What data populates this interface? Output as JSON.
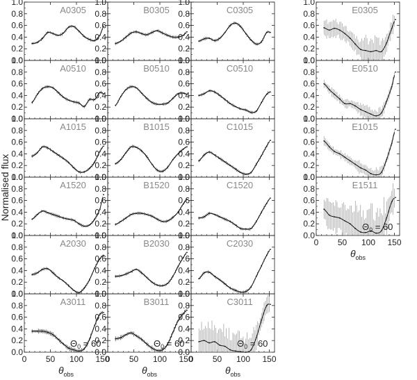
{
  "chart_data": {
    "type": "line",
    "ylabel": "Normalised flux",
    "xlabel": "θobs",
    "xlabel_main": "θ",
    "xlabel_sub": "obs",
    "xlim": [
      0,
      160
    ],
    "ylim": [
      0,
      1.0
    ],
    "xticks": [
      "0",
      "50",
      "100",
      "150"
    ],
    "yticks": [
      "0.0",
      "0.2",
      "0.4",
      "0.6",
      "0.8",
      "1.0"
    ],
    "annotation": {
      "main": "Θ",
      "sub": "0",
      "rest": " = 60"
    },
    "panels": [
      {
        "name": "A0305",
        "col": 0,
        "row": 0,
        "err": 0.02,
        "x": [
          15,
          25,
          35,
          45,
          55,
          65,
          75,
          85,
          95,
          105,
          115,
          125,
          135,
          145,
          152
        ],
        "y": [
          0.29,
          0.31,
          0.38,
          0.48,
          0.46,
          0.43,
          0.47,
          0.57,
          0.58,
          0.5,
          0.41,
          0.36,
          0.34,
          0.43,
          0.58
        ]
      },
      {
        "name": "A0510",
        "col": 0,
        "row": 1,
        "err": 0.02,
        "x": [
          15,
          25,
          35,
          45,
          55,
          65,
          75,
          85,
          95,
          105,
          115,
          125,
          135,
          145,
          152
        ],
        "y": [
          0.28,
          0.42,
          0.52,
          0.55,
          0.53,
          0.45,
          0.37,
          0.32,
          0.29,
          0.27,
          0.21,
          0.33,
          0.33,
          0.45,
          0.43
        ]
      },
      {
        "name": "A1015",
        "col": 0,
        "row": 2,
        "err": 0.02,
        "x": [
          15,
          25,
          35,
          45,
          55,
          65,
          75,
          85,
          95,
          105,
          115,
          125,
          135,
          145,
          152
        ],
        "y": [
          0.36,
          0.42,
          0.52,
          0.5,
          0.44,
          0.38,
          0.32,
          0.25,
          0.16,
          0.09,
          0.09,
          0.15,
          0.26,
          0.44,
          0.53
        ]
      },
      {
        "name": "A1520",
        "col": 0,
        "row": 3,
        "err": 0.02,
        "x": [
          15,
          25,
          35,
          45,
          55,
          65,
          75,
          85,
          95,
          105,
          115,
          125,
          135,
          145,
          152
        ],
        "y": [
          0.28,
          0.36,
          0.42,
          0.39,
          0.36,
          0.33,
          0.3,
          0.28,
          0.26,
          0.2,
          0.16,
          0.18,
          0.28,
          0.45,
          0.7
        ]
      },
      {
        "name": "A2030",
        "col": 0,
        "row": 4,
        "err": 0.02,
        "x": [
          15,
          25,
          35,
          45,
          55,
          65,
          75,
          85,
          95,
          105,
          115,
          125,
          135,
          145,
          152
        ],
        "y": [
          0.33,
          0.36,
          0.42,
          0.43,
          0.36,
          0.28,
          0.22,
          0.14,
          0.06,
          0.02,
          0.1,
          0.24,
          0.44,
          0.6,
          0.66
        ]
      },
      {
        "name": "A3011",
        "col": 0,
        "row": 5,
        "err": 0.03,
        "annotate": true,
        "x": [
          15,
          25,
          35,
          45,
          55,
          65,
          75,
          85,
          95,
          105,
          115,
          125,
          135,
          145,
          152
        ],
        "y": [
          0.36,
          0.36,
          0.36,
          0.34,
          0.3,
          0.22,
          0.14,
          0.07,
          0.04,
          0.02,
          0.06,
          0.22,
          0.46,
          0.65,
          0.68
        ]
      },
      {
        "name": "B0305",
        "col": 1,
        "row": 0,
        "err": 0.02,
        "x": [
          15,
          25,
          35,
          45,
          55,
          65,
          75,
          85,
          95,
          105,
          115,
          125,
          135,
          145,
          152
        ],
        "y": [
          0.29,
          0.33,
          0.4,
          0.47,
          0.49,
          0.46,
          0.44,
          0.48,
          0.51,
          0.47,
          0.43,
          0.4,
          0.4,
          0.43,
          0.49
        ]
      },
      {
        "name": "B0510",
        "col": 1,
        "row": 1,
        "err": 0.02,
        "x": [
          15,
          25,
          35,
          45,
          55,
          65,
          75,
          85,
          95,
          105,
          115,
          125,
          135,
          145,
          152
        ],
        "y": [
          0.23,
          0.38,
          0.5,
          0.55,
          0.53,
          0.44,
          0.35,
          0.28,
          0.25,
          0.25,
          0.27,
          0.35,
          0.43,
          0.44,
          0.42
        ]
      },
      {
        "name": "B1015",
        "col": 1,
        "row": 2,
        "err": 0.02,
        "x": [
          15,
          25,
          35,
          45,
          55,
          65,
          75,
          85,
          95,
          105,
          115,
          125,
          135,
          145,
          152
        ],
        "y": [
          0.23,
          0.3,
          0.42,
          0.52,
          0.51,
          0.45,
          0.35,
          0.22,
          0.12,
          0.1,
          0.17,
          0.3,
          0.4,
          0.48,
          0.52
        ]
      },
      {
        "name": "B1520",
        "col": 1,
        "row": 3,
        "err": 0.02,
        "x": [
          15,
          25,
          35,
          45,
          55,
          65,
          75,
          85,
          95,
          105,
          115,
          125,
          135,
          145,
          152
        ],
        "y": [
          0.19,
          0.24,
          0.3,
          0.36,
          0.38,
          0.38,
          0.36,
          0.33,
          0.28,
          0.24,
          0.25,
          0.31,
          0.4,
          0.54,
          0.62
        ]
      },
      {
        "name": "B2030",
        "col": 1,
        "row": 4,
        "err": 0.02,
        "x": [
          15,
          25,
          35,
          45,
          55,
          65,
          75,
          85,
          95,
          105,
          115,
          125,
          135,
          145,
          152
        ],
        "y": [
          0.3,
          0.31,
          0.34,
          0.38,
          0.42,
          0.36,
          0.28,
          0.2,
          0.15,
          0.14,
          0.18,
          0.3,
          0.47,
          0.62,
          0.71
        ]
      },
      {
        "name": "B3011",
        "col": 1,
        "row": 5,
        "err": 0.03,
        "annotate": true,
        "x": [
          15,
          25,
          35,
          45,
          55,
          65,
          75,
          85,
          95,
          105,
          115,
          125,
          135,
          145,
          152
        ],
        "y": [
          0.23,
          0.25,
          0.3,
          0.33,
          0.28,
          0.22,
          0.14,
          0.07,
          0.03,
          0.04,
          0.14,
          0.34,
          0.54,
          0.66,
          0.72
        ]
      },
      {
        "name": "C0305",
        "col": 2,
        "row": 0,
        "err": 0.02,
        "x": [
          15,
          25,
          35,
          45,
          55,
          65,
          75,
          85,
          95,
          105,
          115,
          125,
          135,
          145,
          152
        ],
        "y": [
          0.33,
          0.37,
          0.38,
          0.34,
          0.38,
          0.48,
          0.6,
          0.64,
          0.58,
          0.46,
          0.35,
          0.28,
          0.32,
          0.48,
          0.48
        ]
      },
      {
        "name": "C0510",
        "col": 2,
        "row": 1,
        "err": 0.02,
        "x": [
          15,
          25,
          35,
          45,
          55,
          65,
          75,
          85,
          95,
          105,
          115,
          125,
          135,
          145,
          152
        ],
        "y": [
          0.4,
          0.43,
          0.48,
          0.46,
          0.4,
          0.33,
          0.26,
          0.21,
          0.17,
          0.15,
          0.11,
          0.13,
          0.28,
          0.42,
          0.46
        ]
      },
      {
        "name": "C1015",
        "col": 2,
        "row": 2,
        "err": 0.02,
        "x": [
          15,
          25,
          35,
          45,
          55,
          65,
          75,
          85,
          95,
          105,
          115,
          125,
          135,
          145,
          152
        ],
        "y": [
          0.28,
          0.38,
          0.43,
          0.38,
          0.32,
          0.26,
          0.2,
          0.14,
          0.08,
          0.05,
          0.08,
          0.22,
          0.37,
          0.53,
          0.63
        ]
      },
      {
        "name": "C1520",
        "col": 2,
        "row": 3,
        "err": 0.02,
        "x": [
          15,
          25,
          35,
          45,
          55,
          65,
          75,
          85,
          95,
          105,
          115,
          125,
          135,
          145,
          152
        ],
        "y": [
          0.3,
          0.32,
          0.38,
          0.36,
          0.32,
          0.28,
          0.24,
          0.18,
          0.12,
          0.11,
          0.12,
          0.24,
          0.4,
          0.55,
          0.64
        ]
      },
      {
        "name": "C2030",
        "col": 2,
        "row": 4,
        "err": 0.02,
        "x": [
          15,
          25,
          35,
          45,
          55,
          65,
          75,
          85,
          95,
          105,
          115,
          125,
          135,
          145,
          152
        ],
        "y": [
          0.26,
          0.36,
          0.37,
          0.3,
          0.24,
          0.17,
          0.1,
          0.06,
          0.03,
          0.04,
          0.12,
          0.3,
          0.48,
          0.66,
          0.76
        ]
      },
      {
        "name": "C3011",
        "col": 2,
        "row": 5,
        "err": 0.17,
        "annotate": true,
        "x": [
          15,
          25,
          35,
          45,
          55,
          65,
          75,
          85,
          95,
          105,
          115,
          125,
          135,
          145,
          152
        ],
        "y": [
          0.18,
          0.2,
          0.16,
          0.18,
          0.12,
          0.1,
          0.04,
          0.02,
          0.01,
          0.0,
          0.04,
          0.25,
          0.55,
          0.8,
          0.82
        ]
      },
      {
        "name": "E0305",
        "col": 3,
        "row": 0,
        "err": 0.12,
        "x": [
          15,
          25,
          35,
          45,
          55,
          65,
          75,
          85,
          95,
          105,
          115,
          125,
          135,
          145,
          152
        ],
        "y": [
          0.56,
          0.52,
          0.55,
          0.52,
          0.46,
          0.38,
          0.28,
          0.19,
          0.17,
          0.15,
          0.17,
          0.15,
          0.3,
          0.55,
          0.7
        ]
      },
      {
        "name": "E0510",
        "col": 3,
        "row": 1,
        "err": 0.06,
        "x": [
          15,
          25,
          35,
          45,
          55,
          65,
          75,
          85,
          95,
          105,
          115,
          125,
          135,
          145,
          152
        ],
        "y": [
          0.6,
          0.5,
          0.42,
          0.34,
          0.26,
          0.26,
          0.22,
          0.16,
          0.12,
          0.08,
          0.05,
          0.1,
          0.3,
          0.55,
          0.8
        ]
      },
      {
        "name": "E1015",
        "col": 3,
        "row": 2,
        "err": 0.06,
        "x": [
          15,
          25,
          35,
          45,
          55,
          65,
          75,
          85,
          95,
          105,
          115,
          125,
          135,
          145,
          152
        ],
        "y": [
          0.62,
          0.52,
          0.44,
          0.4,
          0.34,
          0.28,
          0.22,
          0.16,
          0.12,
          0.06,
          0.04,
          0.08,
          0.3,
          0.58,
          0.82
        ]
      },
      {
        "name": "E1511",
        "col": 3,
        "row": 3,
        "err": 0.22,
        "annotate": true,
        "has_xaxis": true,
        "x": [
          15,
          25,
          35,
          45,
          55,
          65,
          75,
          85,
          95,
          105,
          115,
          125,
          135,
          145,
          152
        ],
        "y": [
          0.45,
          0.35,
          0.32,
          0.3,
          0.25,
          0.2,
          0.12,
          0.06,
          0.05,
          0.08,
          0.04,
          0.08,
          0.3,
          0.58,
          0.65
        ]
      }
    ]
  }
}
